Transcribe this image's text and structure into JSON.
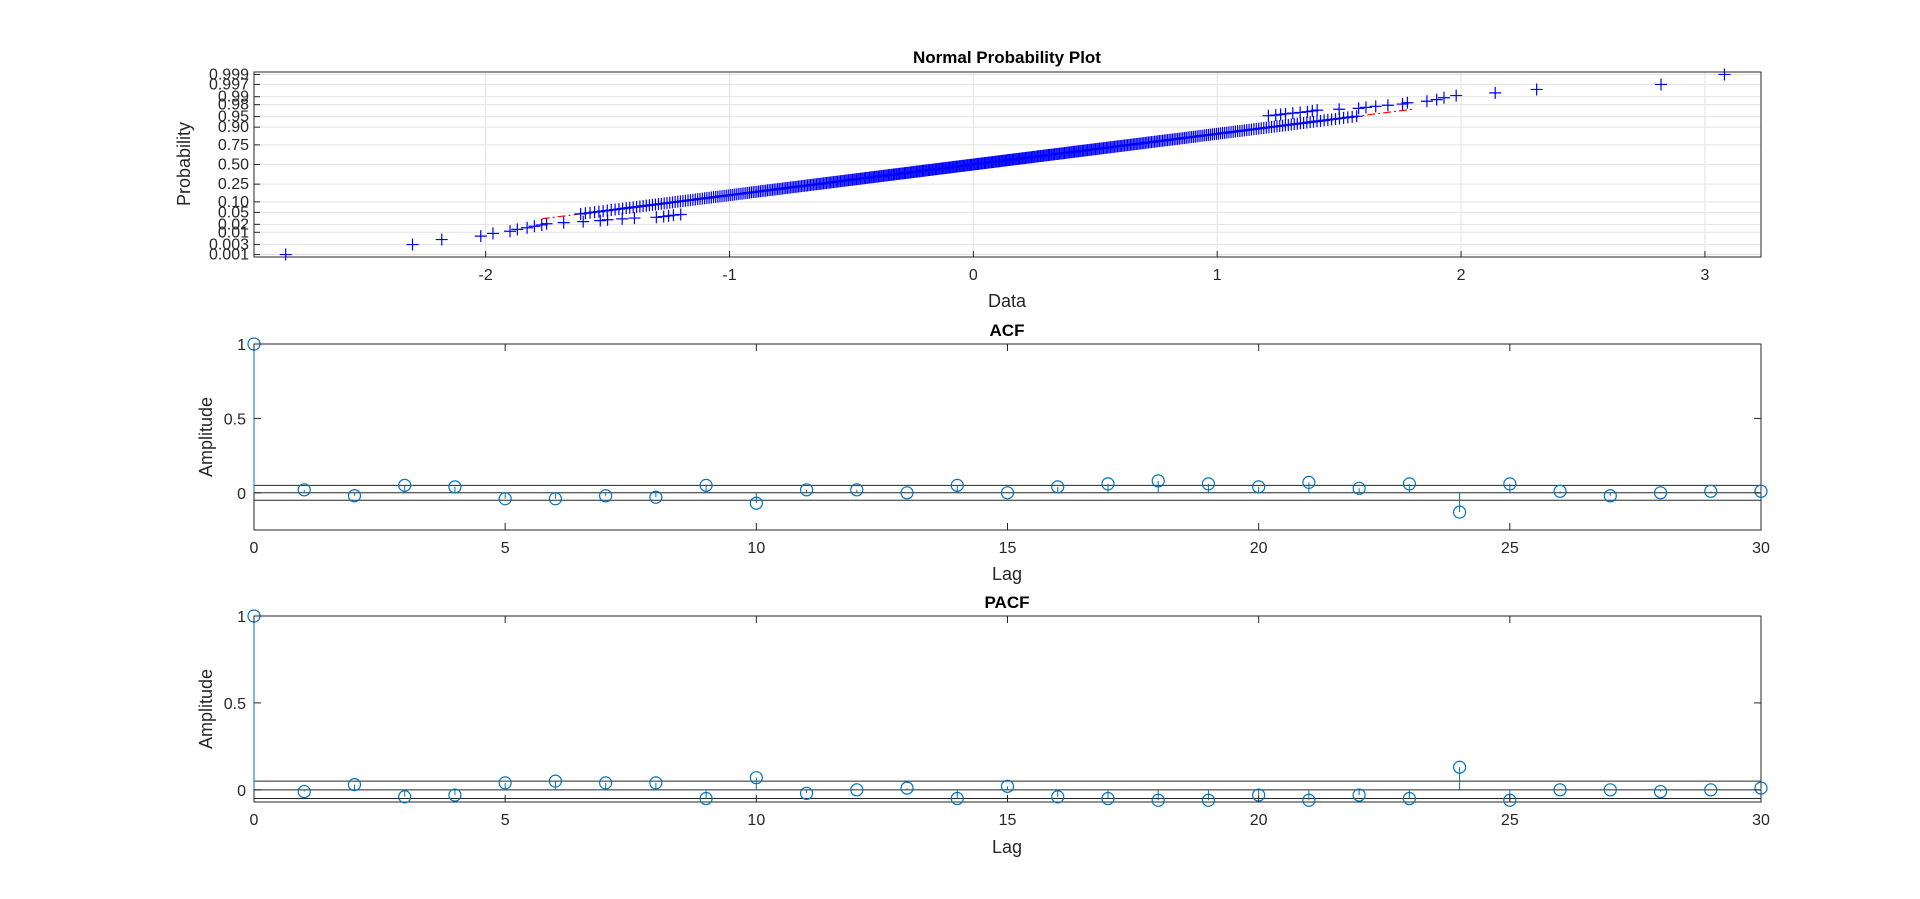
{
  "chart_data": [
    {
      "type": "scatter",
      "title": "Normal Probability Plot",
      "xlabel": "Data",
      "ylabel": "Probability",
      "xlim": [
        -2.95,
        3.23
      ],
      "xticks": [
        -2,
        -1,
        0,
        1,
        2,
        3
      ],
      "xtick_labels": [
        "-2",
        "-1",
        "0",
        "1",
        "2",
        "3"
      ],
      "yticks": [
        0.001,
        0.003,
        0.01,
        0.02,
        0.05,
        0.1,
        0.25,
        0.5,
        0.75,
        0.9,
        0.95,
        0.98,
        0.99,
        0.997,
        0.999
      ],
      "ytick_labels": [
        "0.001",
        "0.003",
        "0.01",
        "0.02",
        "0.05",
        "0.10",
        "0.25",
        "0.50",
        "0.75",
        "0.90",
        "0.95",
        "0.98",
        "0.99",
        "0.997",
        "0.999"
      ],
      "grid": true,
      "marker": "+",
      "marker_color": "#0000ff",
      "line_color": "#ff0000",
      "sample_size": 500,
      "tail_points": [
        -2.82,
        -2.3,
        -2.18,
        -2.02,
        -1.97,
        -1.9,
        -1.87,
        -1.83,
        -1.8,
        -1.77,
        -1.75,
        -1.68,
        -1.6,
        -1.53,
        -1.5,
        -1.44,
        -1.39,
        -1.3,
        -1.27,
        -1.25,
        -1.23,
        -1.2,
        1.21,
        1.24,
        1.26,
        1.28,
        1.31,
        1.34,
        1.37,
        1.39,
        1.41,
        1.5,
        1.58,
        1.61,
        1.65,
        1.7,
        1.76,
        1.78,
        1.86,
        1.9,
        1.93,
        1.98,
        2.14,
        2.31,
        2.82,
        3.08
      ],
      "reference_line": {
        "slope_sd": 0.95,
        "x_from": -1.77,
        "x_to": 1.81
      }
    },
    {
      "type": "stem",
      "title": "ACF",
      "xlabel": "Lag",
      "ylabel": "Amplitude",
      "xlim": [
        0,
        30
      ],
      "ylim": [
        -0.25,
        1
      ],
      "xticks": [
        0,
        5,
        10,
        15,
        20,
        25,
        30
      ],
      "xtick_labels": [
        "0",
        "5",
        "10",
        "15",
        "20",
        "25",
        "30"
      ],
      "yticks": [
        0,
        0.5,
        1
      ],
      "ytick_labels": [
        "0",
        "0.5",
        "1"
      ],
      "lags": [
        0,
        1,
        2,
        3,
        4,
        5,
        6,
        7,
        8,
        9,
        10,
        11,
        12,
        13,
        14,
        15,
        16,
        17,
        18,
        19,
        20,
        21,
        22,
        23,
        24,
        25,
        26,
        27,
        28,
        29,
        30
      ],
      "values": [
        1.0,
        0.02,
        -0.02,
        0.05,
        0.04,
        -0.04,
        -0.04,
        -0.02,
        -0.03,
        0.05,
        -0.07,
        0.02,
        0.02,
        0.0,
        0.05,
        0.0,
        0.04,
        0.06,
        0.08,
        0.06,
        0.04,
        0.07,
        0.03,
        0.06,
        -0.13,
        0.06,
        0.01,
        -0.02,
        0.0,
        0.01,
        0.01
      ],
      "bounds": [
        0.05,
        -0.05
      ],
      "marker_color": "#0072bd"
    },
    {
      "type": "stem",
      "title": "PACF",
      "xlabel": "Lag",
      "ylabel": "Amplitude",
      "xlim": [
        0,
        30
      ],
      "ylim": [
        -0.07,
        1
      ],
      "xticks": [
        0,
        5,
        10,
        15,
        20,
        25,
        30
      ],
      "xtick_labels": [
        "0",
        "5",
        "10",
        "15",
        "20",
        "25",
        "30"
      ],
      "yticks": [
        0,
        0.5,
        1
      ],
      "ytick_labels": [
        "0",
        "0.5",
        "1"
      ],
      "lags": [
        0,
        1,
        2,
        3,
        4,
        5,
        6,
        7,
        8,
        9,
        10,
        11,
        12,
        13,
        14,
        15,
        16,
        17,
        18,
        19,
        20,
        21,
        22,
        23,
        24,
        25,
        26,
        27,
        28,
        29,
        30
      ],
      "values": [
        1.0,
        -0.01,
        0.03,
        -0.04,
        -0.03,
        0.04,
        0.05,
        0.04,
        0.04,
        -0.05,
        0.07,
        -0.02,
        0.0,
        0.01,
        -0.05,
        0.02,
        -0.04,
        -0.05,
        -0.06,
        -0.06,
        -0.03,
        -0.06,
        -0.03,
        -0.05,
        0.13,
        -0.06,
        0.0,
        0.0,
        -0.01,
        0.0,
        0.01
      ],
      "bounds": [
        0.05,
        -0.05
      ],
      "marker_color": "#0072bd"
    }
  ]
}
